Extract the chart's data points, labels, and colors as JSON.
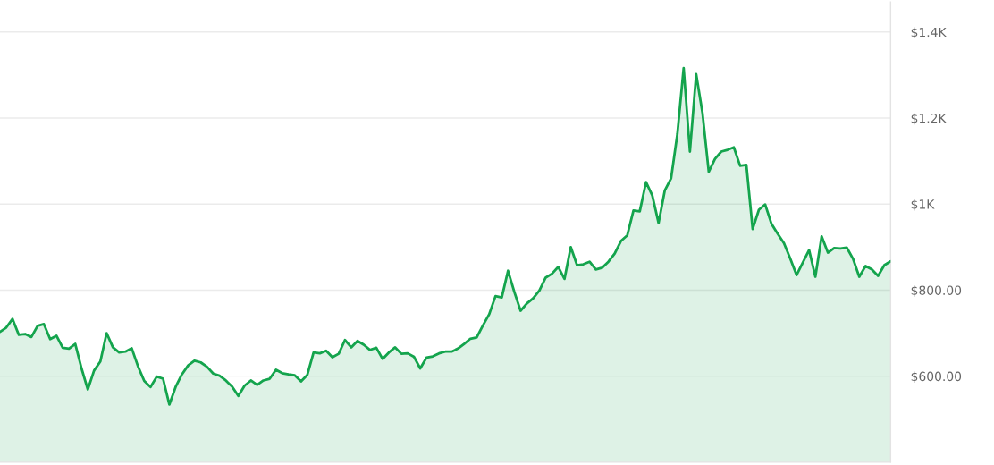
{
  "chart_data": {
    "type": "area",
    "categories": [
      null,
      null,
      null,
      null,
      null,
      null,
      null,
      null,
      null,
      null,
      null,
      null,
      null,
      null,
      null,
      null,
      null,
      null,
      null,
      null,
      null,
      null,
      null,
      null,
      null,
      null,
      null,
      null,
      null,
      null,
      null,
      null,
      null,
      null,
      null,
      null,
      null,
      null,
      null,
      null,
      null,
      null,
      null,
      null,
      null,
      null,
      null,
      null,
      null,
      null,
      null,
      null,
      null,
      null,
      null,
      null,
      null,
      null,
      null,
      null,
      null,
      null,
      null,
      null,
      null,
      null,
      null,
      null,
      null,
      null,
      null,
      null,
      null,
      null,
      null,
      null,
      null,
      null,
      null,
      null,
      null,
      null,
      null,
      null,
      null,
      null,
      null,
      null,
      null,
      null,
      null,
      null,
      null,
      null,
      null,
      null,
      null,
      null,
      null,
      null,
      null,
      null,
      null,
      null,
      null,
      null,
      null,
      null,
      null,
      null,
      null,
      null,
      null,
      null,
      null,
      null,
      null,
      null,
      null,
      null,
      null,
      null,
      null,
      null,
      null,
      null,
      null,
      null,
      null,
      null,
      null,
      null,
      null,
      null,
      null,
      null,
      null,
      null,
      null,
      null,
      null,
      null,
      null
    ],
    "series": [
      {
        "color": "#14a44d",
        "values": [
          703,
          713,
          733,
          696,
          698,
          691,
          717,
          721,
          686,
          694,
          666,
          664,
          675,
          618,
          569,
          613,
          634,
          700,
          667,
          655,
          657,
          665,
          623,
          589,
          575,
          599,
          594,
          534,
          575,
          604,
          625,
          636,
          632,
          622,
          606,
          601,
          590,
          576,
          554,
          578,
          590,
          580,
          590,
          594,
          615,
          607,
          604,
          602,
          588,
          603,
          655,
          653,
          659,
          644,
          652,
          684,
          667,
          682,
          673,
          661,
          666,
          640,
          655,
          667,
          652,
          653,
          645,
          618,
          643,
          646,
          653,
          657,
          657,
          664,
          675,
          687,
          690,
          718,
          744,
          786,
          783,
          845,
          796,
          752,
          769,
          781,
          799,
          829,
          838,
          854,
          826,
          900,
          858,
          860,
          866,
          848,
          852,
          866,
          885,
          914,
          927,
          985,
          983,
          1051,
          1020,
          956,
          1032,
          1060,
          1163,
          1316,
          1122,
          1302,
          1212,
          1075,
          1105,
          1122,
          1126,
          1132,
          1089,
          1091,
          942,
          987,
          999,
          954,
          931,
          909,
          873,
          835,
          864,
          893,
          831,
          925,
          887,
          898,
          897,
          899,
          873,
          831,
          856,
          848,
          833,
          858,
          867
        ]
      }
    ],
    "ylim": [
      400,
      1470
    ],
    "yticks": [
      {
        "value": 600,
        "label": "$600.00"
      },
      {
        "value": 800,
        "label": "$800.00"
      },
      {
        "value": 1000,
        "label": "$1K"
      },
      {
        "value": 1200,
        "label": "$1.2K"
      },
      {
        "value": 1400,
        "label": "$1.4K"
      }
    ],
    "grid": "y",
    "tick_labels": "y"
  }
}
